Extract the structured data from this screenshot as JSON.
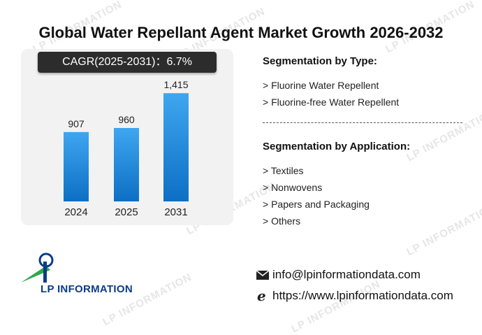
{
  "title": "Global Water Repellant Agent Market Growth 2026-2032",
  "cagr_label": "CAGR(2025-2031)：6.7%",
  "chart_data": {
    "type": "bar",
    "categories": [
      "2024",
      "2025",
      "2031"
    ],
    "values": [
      907,
      960,
      1415
    ],
    "value_labels": [
      "907",
      "960",
      "1,415"
    ],
    "ylim": [
      0,
      1600
    ],
    "title": "",
    "xlabel": "",
    "ylabel": "",
    "grid": false,
    "bar_gradient": [
      "#3fa6f0",
      "#0d6fc4"
    ]
  },
  "segmentation_type": {
    "heading": "Segmentation by Type:",
    "items": [
      "> Fluorine Water Repellent",
      "> Fluorine-free Water Repellent"
    ]
  },
  "segmentation_application": {
    "heading": "Segmentation by Application:",
    "items": [
      "> Textiles",
      "> Nonwovens",
      "> Papers and Packaging",
      "> Others"
    ]
  },
  "contact": {
    "email": "info@lpinformationdata.com",
    "website": "https://www.lpinformationdata.com"
  },
  "logo": {
    "text": "LP INFORMATION",
    "colors": [
      "#0b3c86",
      "#2aa84a"
    ]
  },
  "watermark": {
    "text": "LP INFORMATION"
  }
}
